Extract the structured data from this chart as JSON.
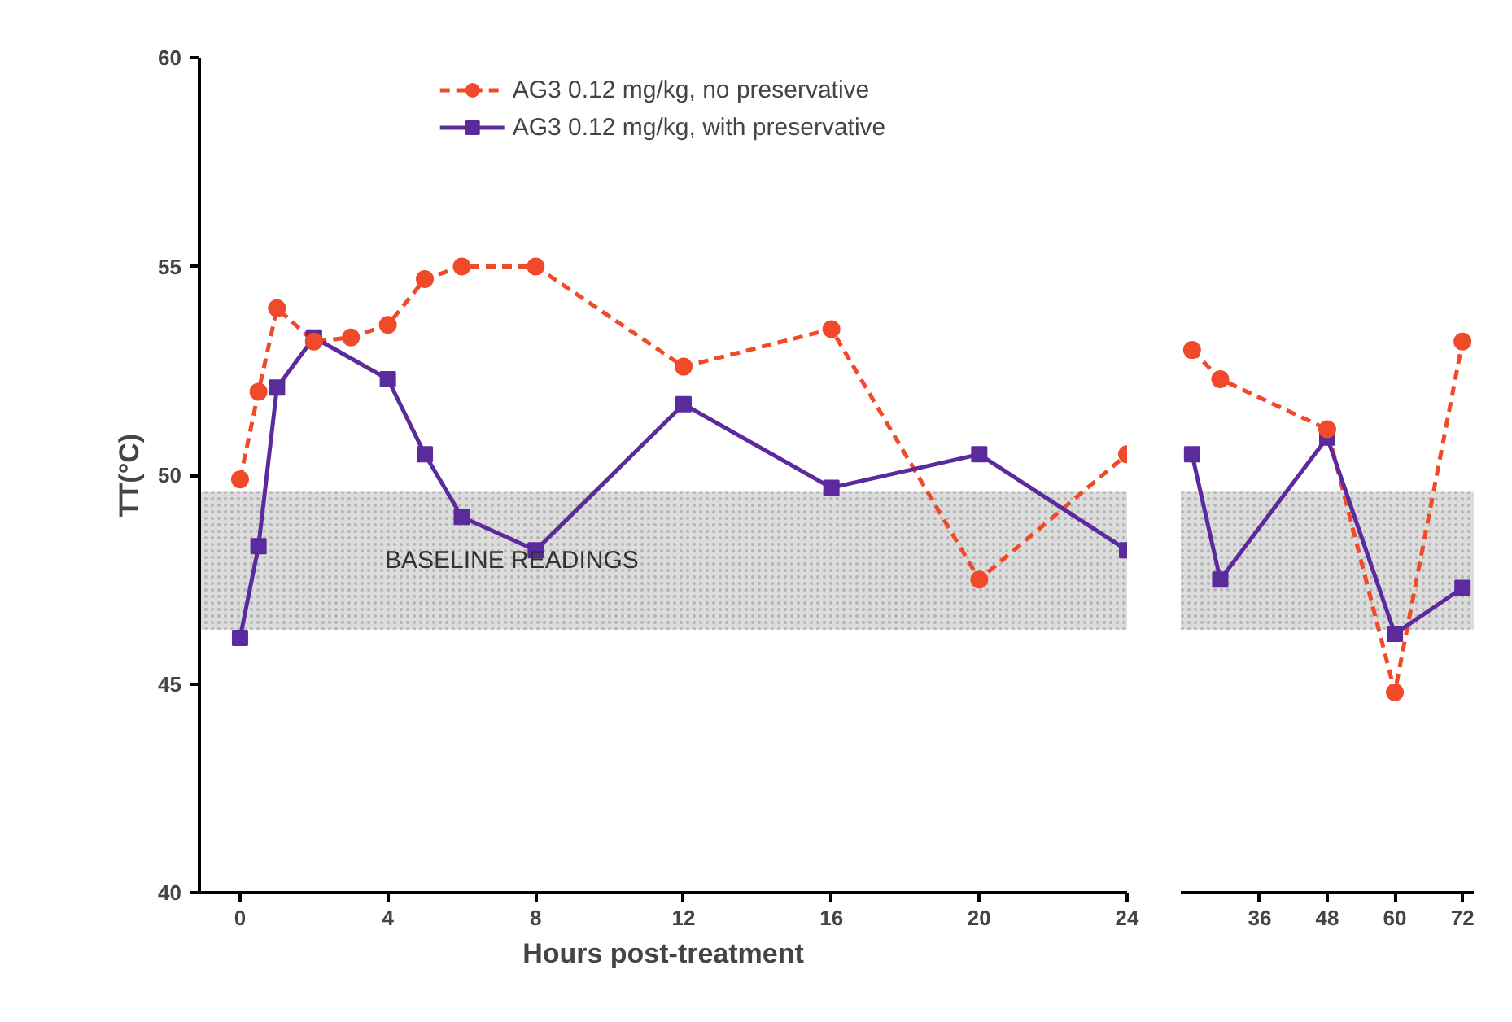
{
  "chart_data": [
    {
      "type": "line",
      "xlabel": "Hours post-treatment",
      "ylabel": "TT(°C)",
      "x": [
        0,
        0.5,
        1,
        2,
        3,
        4,
        5,
        6,
        8,
        12,
        16,
        20,
        24
      ],
      "xlim": [
        -1.1,
        24
      ],
      "xticks": [
        0,
        4,
        8,
        12,
        16,
        20,
        24
      ],
      "ylim": [
        40,
        60
      ],
      "yticks": [
        40,
        45,
        50,
        55,
        60
      ],
      "legend": "top",
      "series": [
        {
          "name": "AG3 0.12 mg/kg, no preservative",
          "color": "#f04a2a",
          "line_style": "dashed",
          "marker": "circle",
          "values": [
            49.9,
            52.0,
            54.0,
            53.2,
            53.3,
            53.6,
            54.7,
            55.0,
            55.0,
            52.6,
            53.5,
            47.5,
            50.5
          ]
        },
        {
          "name": "AG3 0.12 mg/kg, with preservative",
          "color": "#5b2a9c",
          "line_style": "solid",
          "marker": "square",
          "x": [
            0,
            0.5,
            1,
            2,
            4,
            5,
            6,
            8,
            12,
            16,
            20,
            24
          ],
          "values": [
            46.1,
            48.3,
            52.1,
            53.3,
            52.3,
            50.5,
            49.0,
            48.2,
            51.7,
            49.7,
            50.5,
            48.2
          ]
        }
      ],
      "bands": [
        {
          "axis": "y",
          "from": 46.3,
          "to": 49.6,
          "label": "BASELINE READINGS",
          "color": "#dcdcdc"
        }
      ]
    },
    {
      "type": "line",
      "x": [
        24,
        29,
        48,
        60,
        72
      ],
      "xlim": [
        22,
        74
      ],
      "xticks": [
        36,
        48,
        60,
        72
      ],
      "ylim": [
        40,
        60
      ],
      "tick_labels": "x",
      "series": [
        {
          "color": "#f04a2a",
          "line_style": "dashed",
          "marker": "circle",
          "values": [
            53.0,
            52.3,
            51.1,
            44.8,
            53.2
          ]
        },
        {
          "color": "#5b2a9c",
          "line_style": "solid",
          "marker": "square",
          "values": [
            50.5,
            47.5,
            50.9,
            46.2,
            47.3
          ]
        }
      ],
      "bands": [
        {
          "axis": "y",
          "from": 46.3,
          "to": 49.6,
          "color": "#dcdcdc"
        }
      ]
    }
  ]
}
